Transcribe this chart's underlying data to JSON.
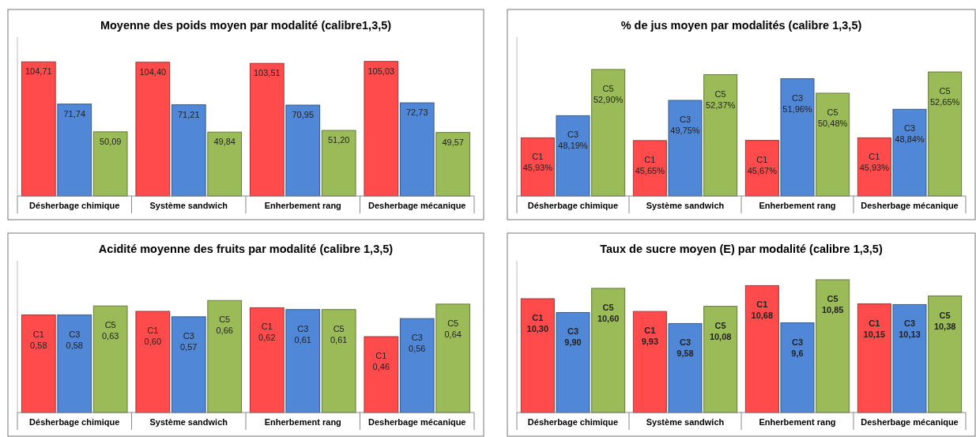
{
  "chart_data": [
    {
      "type": "bar",
      "title": "Moyenne des poids moyen par modalité (calibre1,3,5)",
      "categories": [
        "Désherbage chimique",
        "Système sandwich",
        "Enherbement rang",
        "Desherbage mécanique"
      ],
      "ylim": [
        0,
        124
      ],
      "tick_labels": "x",
      "series": [
        {
          "color": "#ff4b4b",
          "values": [
            104.71,
            104.4,
            103.51,
            105.03
          ],
          "value_labels": [
            "104,71",
            "104,40",
            "103,51",
            "105,03"
          ]
        },
        {
          "color": "#5087d6",
          "values": [
            71.74,
            71.21,
            70.95,
            72.73
          ],
          "value_labels": [
            "71,74",
            "71,21",
            "70,95",
            "72,73"
          ]
        },
        {
          "color": "#9bbb59",
          "values": [
            50.09,
            49.84,
            51.2,
            49.57
          ],
          "value_labels": [
            "50,09",
            "49,84",
            "51,20",
            "49,57"
          ]
        }
      ]
    },
    {
      "type": "bar",
      "title": "% de jus moyen par modalités (calibre 1,3,5)",
      "categories": [
        "Désherbage chimique",
        "Système sandwich",
        "Enherbement rang",
        "Desherbage mécanique"
      ],
      "ylim": [
        40,
        56.2
      ],
      "tick_labels": "x",
      "series": [
        {
          "color": "#ff4b4b",
          "values": [
            45.93,
            45.65,
            45.67,
            45.93
          ],
          "value_labels": [
            "C1\n45,93%",
            "C1\n45,65%",
            "C1\n45,67%",
            "C1\n45,93%"
          ]
        },
        {
          "color": "#5087d6",
          "values": [
            48.19,
            49.75,
            51.96,
            48.84
          ],
          "value_labels": [
            "C3\n48,19%",
            "C3\n49,75%",
            "C3\n51,96%",
            "C3\n48,84%"
          ]
        },
        {
          "color": "#9bbb59",
          "values": [
            52.9,
            52.37,
            50.48,
            52.65
          ],
          "value_labels": [
            "C5\n52,90%",
            "C5\n52,37%",
            "C5\n50,48%",
            "C5\n52,65%"
          ]
        }
      ]
    },
    {
      "type": "bar",
      "title": "Acidité moyenne des fruits par modalité (calibre 1,3,5)",
      "categories": [
        "Désherbage chimique",
        "Système sandwich",
        "Enherbement rang",
        "Desherbage mécanique"
      ],
      "ylim": [
        0.04,
        0.88
      ],
      "tick_labels": "x",
      "series": [
        {
          "color": "#ff4b4b",
          "values": [
            0.58,
            0.6,
            0.62,
            0.46
          ],
          "value_labels": [
            "C1\n0,58",
            "C1\n0,60",
            "C1\n0,62",
            "C1\n0,46"
          ]
        },
        {
          "color": "#5087d6",
          "values": [
            0.58,
            0.57,
            0.61,
            0.56
          ],
          "value_labels": [
            "C3\n0,58",
            "C3\n0,57",
            "C3\n0,61",
            "C3\n0,56"
          ]
        },
        {
          "color": "#9bbb59",
          "values": [
            0.63,
            0.66,
            0.61,
            0.64
          ],
          "value_labels": [
            "C5\n0,63",
            "C5\n0,66",
            "C5\n0,61",
            "C5\n0,64"
          ]
        }
      ]
    },
    {
      "type": "bar",
      "title": "Taux de sucre moyen (E) par modalité (calibre 1,3,5)",
      "categories": [
        "Désherbage chimique",
        "Système sandwich",
        "Enherbement rang",
        "Desherbage mécanique"
      ],
      "ylim": [
        7,
        11.4
      ],
      "tick_labels": "x",
      "series": [
        {
          "color": "#ff4b4b",
          "values": [
            10.3,
            9.93,
            10.68,
            10.15
          ],
          "value_labels": [
            "C1\n10,30",
            "C1\n9,93",
            "C1\n10,68",
            "C1\n10,15"
          ]
        },
        {
          "color": "#5087d6",
          "values": [
            9.9,
            9.58,
            9.6,
            10.13
          ],
          "value_labels": [
            "C3\n9,90",
            "C3\n9,58",
            "C3\n9,6",
            "C3\n10,13"
          ]
        },
        {
          "color": "#9bbb59",
          "values": [
            10.6,
            10.08,
            10.85,
            10.38
          ],
          "value_labels": [
            "C5\n10,60",
            "C5\n10,08",
            "C5\n10,85",
            "C5\n10,38"
          ]
        }
      ]
    }
  ]
}
